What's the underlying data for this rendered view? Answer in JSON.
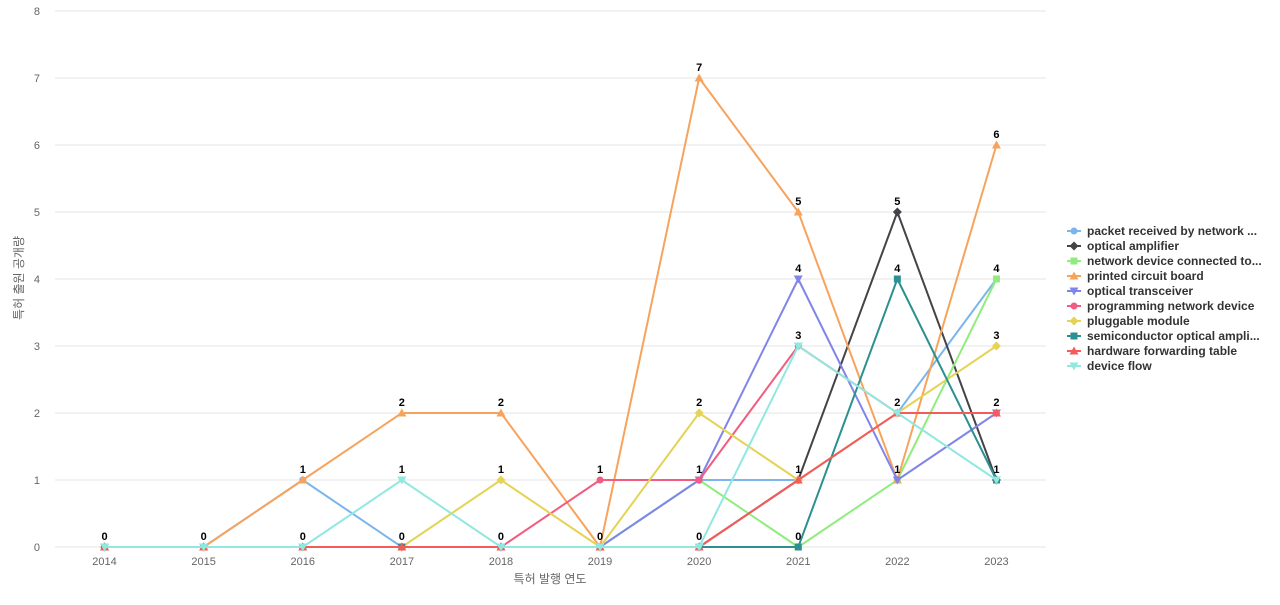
{
  "chart_data": {
    "type": "line",
    "xlabel": "특허 발행 연도",
    "ylabel": "특허 출원 공개량",
    "x": [
      "2014",
      "2015",
      "2016",
      "2017",
      "2018",
      "2019",
      "2020",
      "2021",
      "2022",
      "2023"
    ],
    "ylim": [
      0,
      8
    ],
    "yticks": [
      0,
      1,
      2,
      3,
      4,
      5,
      6,
      7,
      8
    ],
    "grid": true,
    "legend_position": "right",
    "series": [
      {
        "name": "packet received by network ...",
        "color": "#7cb5ec",
        "marker": "circle",
        "values": [
          0,
          0,
          1,
          0,
          0,
          0,
          1,
          1,
          2,
          4
        ]
      },
      {
        "name": "optical amplifier",
        "color": "#434348",
        "marker": "diamond",
        "values": [
          0,
          0,
          0,
          0,
          0,
          0,
          0,
          1,
          5,
          1
        ]
      },
      {
        "name": "network device connected to...",
        "color": "#90ed7d",
        "marker": "square",
        "values": [
          0,
          0,
          0,
          0,
          0,
          0,
          1,
          0,
          1,
          4
        ]
      },
      {
        "name": "printed circuit board",
        "color": "#f7a35c",
        "marker": "triangle",
        "values": [
          0,
          0,
          1,
          2,
          2,
          0,
          7,
          5,
          1,
          6
        ]
      },
      {
        "name": "optical transceiver",
        "color": "#8085e9",
        "marker": "triangle-down",
        "values": [
          0,
          0,
          0,
          0,
          0,
          0,
          1,
          4,
          1,
          2
        ]
      },
      {
        "name": "programming network device",
        "color": "#f15c80",
        "marker": "circle",
        "values": [
          0,
          0,
          0,
          0,
          0,
          1,
          1,
          3,
          2,
          2
        ]
      },
      {
        "name": "pluggable module",
        "color": "#e4d354",
        "marker": "diamond",
        "values": [
          0,
          0,
          0,
          0,
          1,
          0,
          2,
          1,
          2,
          3
        ]
      },
      {
        "name": "semiconductor optical ampli...",
        "color": "#2b908f",
        "marker": "square",
        "values": [
          0,
          0,
          0,
          0,
          0,
          0,
          0,
          0,
          4,
          1
        ]
      },
      {
        "name": "hardware forwarding table",
        "color": "#f45b5b",
        "marker": "triangle",
        "values": [
          0,
          0,
          0,
          0,
          0,
          0,
          0,
          1,
          2,
          2
        ]
      },
      {
        "name": "device flow",
        "color": "#91e8e1",
        "marker": "triangle-down",
        "values": [
          0,
          0,
          0,
          1,
          0,
          0,
          0,
          3,
          2,
          1
        ]
      }
    ],
    "data_labels": [
      {
        "x": "2014",
        "value": 0
      },
      {
        "x": "2015",
        "value": 0
      },
      {
        "x": "2016",
        "value": 1
      },
      {
        "x": "2016",
        "value": 0
      },
      {
        "x": "2017",
        "value": 2
      },
      {
        "x": "2017",
        "value": 1
      },
      {
        "x": "2017",
        "value": 0
      },
      {
        "x": "2018",
        "value": 2
      },
      {
        "x": "2018",
        "value": 1
      },
      {
        "x": "2018",
        "value": 0
      },
      {
        "x": "2019",
        "value": 1
      },
      {
        "x": "2019",
        "value": 0
      },
      {
        "x": "2020",
        "value": 7
      },
      {
        "x": "2020",
        "value": 2
      },
      {
        "x": "2020",
        "value": 1
      },
      {
        "x": "2020",
        "value": 0
      },
      {
        "x": "2021",
        "value": 5
      },
      {
        "x": "2021",
        "value": 4
      },
      {
        "x": "2021",
        "value": 3
      },
      {
        "x": "2021",
        "value": 1
      },
      {
        "x": "2021",
        "value": 0
      },
      {
        "x": "2022",
        "value": 5
      },
      {
        "x": "2022",
        "value": 4
      },
      {
        "x": "2022",
        "value": 2
      },
      {
        "x": "2022",
        "value": 1
      },
      {
        "x": "2023",
        "value": 6
      },
      {
        "x": "2023",
        "value": 4
      },
      {
        "x": "2023",
        "value": 3
      },
      {
        "x": "2023",
        "value": 2
      },
      {
        "x": "2023",
        "value": 1
      }
    ]
  }
}
